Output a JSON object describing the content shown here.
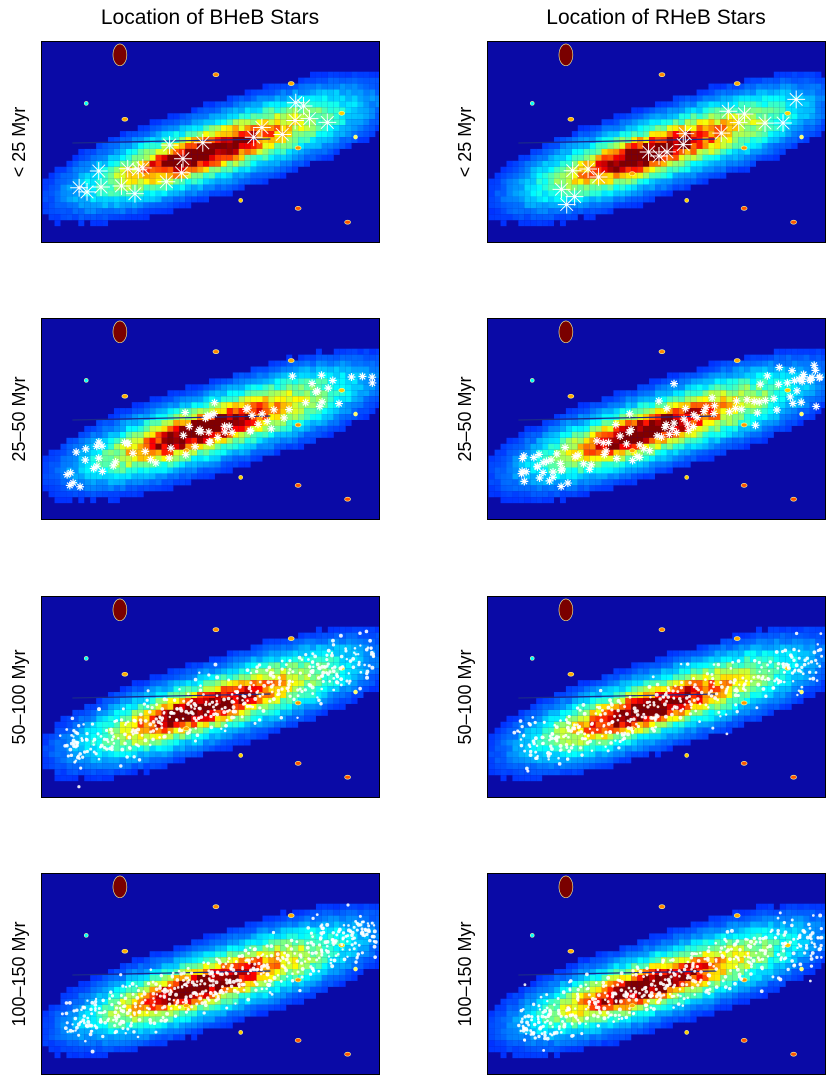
{
  "chart_data": {
    "type": "heatmap",
    "columns": [
      {
        "title": "Location of BHeB Stars"
      },
      {
        "title": "Location of RHeB Stars"
      }
    ],
    "rows": [
      {
        "label": "< 25 Myr"
      },
      {
        "label": "25–50 Myr"
      },
      {
        "label": "50–100 Myr"
      },
      {
        "label": "100–150 Myr"
      }
    ],
    "panels": [
      {
        "column": "BHeB",
        "age_bin": "< 25 Myr",
        "n_stars": 22,
        "star_marker": "large-asterisk"
      },
      {
        "column": "RHeB",
        "age_bin": "< 25 Myr",
        "n_stars": 20,
        "star_marker": "large-asterisk"
      },
      {
        "column": "BHeB",
        "age_bin": "25–50 Myr",
        "n_stars": 75,
        "star_marker": "asterisk"
      },
      {
        "column": "RHeB",
        "age_bin": "25–50 Myr",
        "n_stars": 110,
        "star_marker": "asterisk"
      },
      {
        "column": "BHeB",
        "age_bin": "50–100 Myr",
        "n_stars": 420,
        "star_marker": "dot"
      },
      {
        "column": "RHeB",
        "age_bin": "50–100 Myr",
        "n_stars": 380,
        "star_marker": "dot"
      },
      {
        "column": "BHeB",
        "age_bin": "100–150 Myr",
        "n_stars": 520,
        "star_marker": "dot"
      },
      {
        "column": "RHeB",
        "age_bin": "100–150 Myr",
        "n_stars": 480,
        "star_marker": "dot"
      }
    ],
    "colormap": "jet",
    "background_color": "#0a0aa6",
    "star_color": "#ffffff",
    "axes_ticks": false,
    "grid": false,
    "legend": "none"
  }
}
